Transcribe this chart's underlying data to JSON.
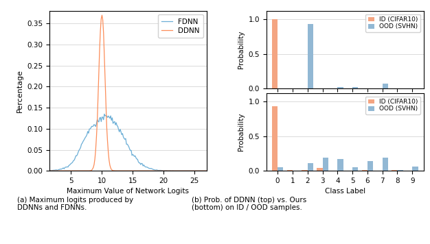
{
  "hist_xlabel": "Maximum Value of Network Logits",
  "hist_ylabel": "Percentage",
  "fdnn_color": "#6baed6",
  "ddnn_color": "#fc8d59",
  "bar_id_color": "#f4a582",
  "bar_ood_color": "#92b8d4",
  "bar_ylabel": "Probability",
  "bar_xlabel": "Class Label",
  "top_id": [
    1.0,
    0.0,
    0.0,
    0.0,
    0.0,
    0.0,
    0.0,
    0.0,
    0.0,
    0.0
  ],
  "top_ood": [
    0.0,
    0.0,
    0.93,
    0.0,
    0.02,
    0.02,
    0.0,
    0.07,
    0.0,
    0.0
  ],
  "bot_id": [
    0.93,
    0.01,
    0.01,
    0.04,
    0.0,
    0.0,
    0.01,
    0.0,
    0.01,
    0.0
  ],
  "bot_ood": [
    0.05,
    0.0,
    0.11,
    0.19,
    0.17,
    0.05,
    0.14,
    0.19,
    0.01,
    0.06
  ],
  "classes": [
    0,
    1,
    2,
    3,
    4,
    5,
    6,
    7,
    8,
    9
  ],
  "caption_left": "(a) Maximum logits produced by\nDDNNs and FDNNs.",
  "caption_right": "(b) Prob. of DDNN (top) vs. Ours\n(bottom) on ID / OOD samples.",
  "xlim_left": 1.5,
  "xlim_right": 27.0,
  "ylim_hist": [
    0.0,
    0.38
  ],
  "fdnn_peak": 0.135,
  "ddnn_peak": 0.37
}
